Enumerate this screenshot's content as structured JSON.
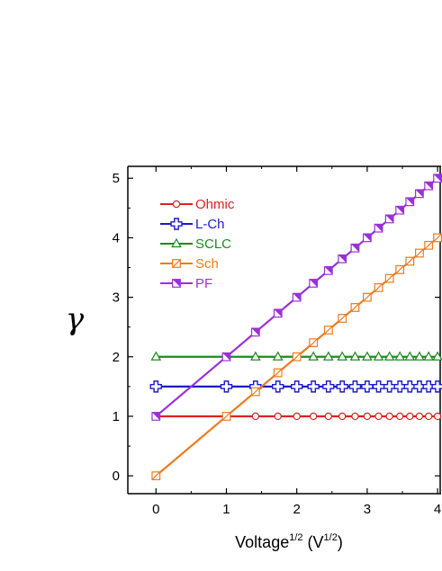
{
  "chart_data": {
    "type": "line",
    "xlabel_main": "Voltage",
    "xlabel_sup1": "1/2",
    "xlabel_mid": " (V",
    "xlabel_sup2": "1/2",
    "xlabel_end": ")",
    "ylabel": "γ",
    "xlim": [
      -0.4,
      4.05
    ],
    "ylim": [
      -0.3,
      5.2
    ],
    "x_ticks": [
      "0",
      "1",
      "2",
      "3",
      "4"
    ],
    "y_ticks": [
      "0",
      "1",
      "2",
      "3",
      "4",
      "5"
    ],
    "legend_position": "top-left",
    "series": [
      {
        "name": "Ohmic",
        "color": "#e02020",
        "marker": "circle",
        "line": [
          [
            0,
            1
          ],
          [
            4,
            1
          ]
        ],
        "points": [
          [
            1.414,
            1
          ],
          [
            1.732,
            1
          ],
          [
            2.0,
            1
          ],
          [
            2.236,
            1
          ],
          [
            2.449,
            1
          ],
          [
            2.646,
            1
          ],
          [
            2.828,
            1
          ],
          [
            3.0,
            1
          ],
          [
            3.162,
            1
          ],
          [
            3.317,
            1
          ],
          [
            3.464,
            1
          ],
          [
            3.606,
            1
          ],
          [
            3.742,
            1
          ],
          [
            3.873,
            1
          ],
          [
            4.0,
            1
          ]
        ]
      },
      {
        "name": "L-Ch",
        "color": "#1a1acc",
        "marker": "plus",
        "line": [
          [
            0,
            1.5
          ],
          [
            4,
            1.5
          ]
        ],
        "points": [
          [
            0,
            1.5
          ],
          [
            1.0,
            1.5
          ],
          [
            1.414,
            1.5
          ],
          [
            1.732,
            1.5
          ],
          [
            2.0,
            1.5
          ],
          [
            2.236,
            1.5
          ],
          [
            2.449,
            1.5
          ],
          [
            2.646,
            1.5
          ],
          [
            2.828,
            1.5
          ],
          [
            3.0,
            1.5
          ],
          [
            3.162,
            1.5
          ],
          [
            3.317,
            1.5
          ],
          [
            3.464,
            1.5
          ],
          [
            3.606,
            1.5
          ],
          [
            3.742,
            1.5
          ],
          [
            3.873,
            1.5
          ],
          [
            4.0,
            1.5
          ]
        ]
      },
      {
        "name": "SCLC",
        "color": "#1f8a1f",
        "marker": "triangle",
        "line": [
          [
            0,
            2
          ],
          [
            4,
            2
          ]
        ],
        "points": [
          [
            0,
            2
          ],
          [
            1.414,
            2
          ],
          [
            1.732,
            2
          ],
          [
            2.236,
            2
          ],
          [
            2.449,
            2
          ],
          [
            2.646,
            2
          ],
          [
            2.828,
            2
          ],
          [
            3.0,
            2
          ],
          [
            3.162,
            2
          ],
          [
            3.317,
            2
          ],
          [
            3.464,
            2
          ],
          [
            3.606,
            2
          ],
          [
            3.742,
            2
          ],
          [
            3.873,
            2
          ],
          [
            4.0,
            2
          ]
        ]
      },
      {
        "name": "Sch",
        "color": "#f07a1e",
        "marker": "square-diag",
        "line": [
          [
            0,
            0
          ],
          [
            4,
            4
          ]
        ],
        "points": [
          [
            0,
            0
          ],
          [
            1.0,
            1.0
          ],
          [
            1.414,
            1.414
          ],
          [
            1.732,
            1.732
          ],
          [
            2.0,
            2.0
          ],
          [
            2.236,
            2.236
          ],
          [
            2.449,
            2.449
          ],
          [
            2.646,
            2.646
          ],
          [
            2.828,
            2.828
          ],
          [
            3.0,
            3.0
          ],
          [
            3.162,
            3.162
          ],
          [
            3.317,
            3.317
          ],
          [
            3.464,
            3.464
          ],
          [
            3.606,
            3.606
          ],
          [
            3.742,
            3.742
          ],
          [
            3.873,
            3.873
          ],
          [
            4.0,
            4.0
          ]
        ]
      },
      {
        "name": "PF",
        "color": "#9b30d9",
        "marker": "square-half",
        "line": [
          [
            0,
            1
          ],
          [
            4,
            5
          ]
        ],
        "points": [
          [
            0,
            1
          ],
          [
            1.0,
            2.0
          ],
          [
            1.414,
            2.414
          ],
          [
            1.732,
            2.732
          ],
          [
            2.0,
            3.0
          ],
          [
            2.236,
            3.236
          ],
          [
            2.449,
            3.449
          ],
          [
            2.646,
            3.646
          ],
          [
            2.828,
            3.828
          ],
          [
            3.0,
            4.0
          ],
          [
            3.162,
            4.162
          ],
          [
            3.317,
            4.317
          ],
          [
            3.464,
            4.464
          ],
          [
            3.606,
            4.606
          ],
          [
            3.742,
            4.742
          ],
          [
            3.873,
            4.873
          ],
          [
            4.0,
            5.0
          ]
        ]
      }
    ]
  }
}
